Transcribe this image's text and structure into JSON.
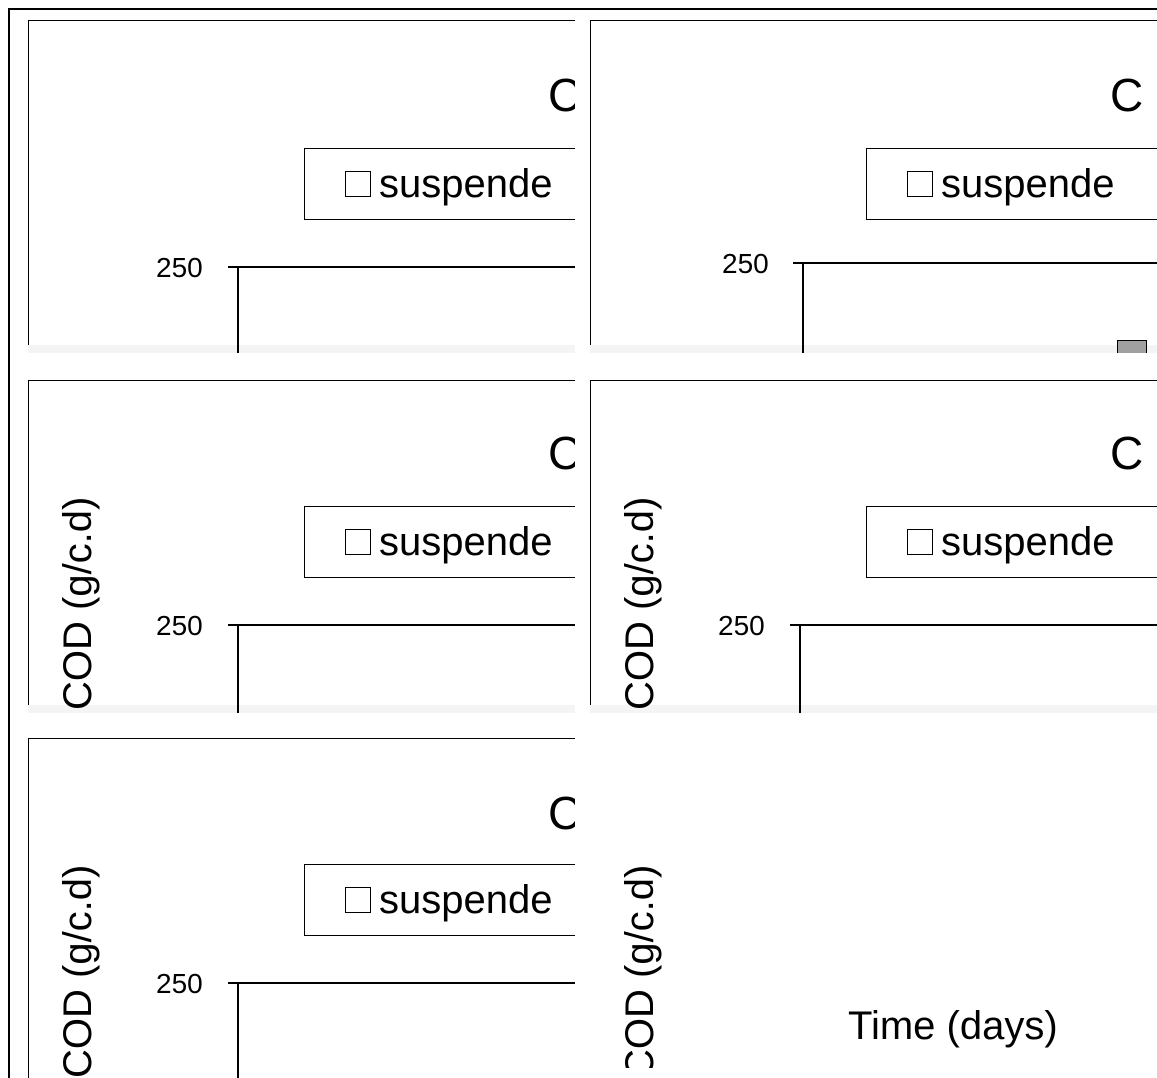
{
  "chart_data": [
    {
      "type": "bar",
      "title": "C",
      "series": [
        {
          "name": "suspende"
        }
      ],
      "yticks": [
        250
      ],
      "xlabel": "",
      "ylabel": ""
    },
    {
      "type": "bar",
      "title": "C",
      "series": [
        {
          "name": "suspende"
        }
      ],
      "yticks": [
        250
      ],
      "xlabel": "",
      "ylabel": ""
    },
    {
      "type": "bar",
      "title": "C",
      "series": [
        {
          "name": "suspende"
        }
      ],
      "yticks": [
        250
      ],
      "xlabel": "",
      "ylabel": "COD (g/c.d)"
    },
    {
      "type": "bar",
      "title": "C",
      "series": [
        {
          "name": "suspende"
        }
      ],
      "yticks": [
        250
      ],
      "xlabel": "",
      "ylabel": "COD (g/c.d)"
    },
    {
      "type": "bar",
      "title": "C",
      "series": [
        {
          "name": "suspende"
        }
      ],
      "yticks": [
        250
      ],
      "xlabel": "",
      "ylabel": "COD (g/c.d)"
    },
    {
      "type": "bar",
      "title": "",
      "series": [],
      "yticks": [],
      "xlabel": "Time (days)",
      "ylabel": "COD (g/c.d)"
    }
  ]
}
